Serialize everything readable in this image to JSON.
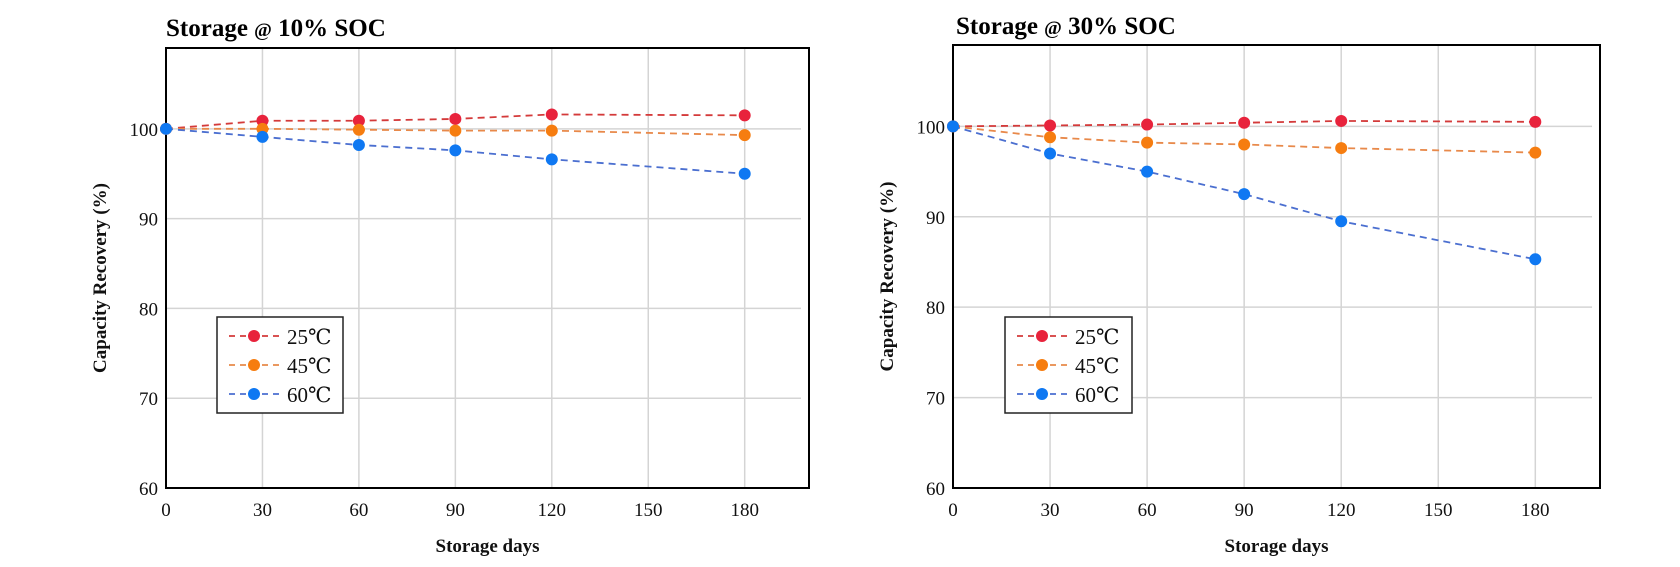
{
  "chart_data": [
    {
      "type": "line",
      "title": "Storage @ 10%  SOC",
      "title_parts": [
        "Storage ",
        "@",
        " 10%  SOC"
      ],
      "xlabel": "Storage days",
      "ylabel": "Capacity Recovery (%)",
      "x": [
        0,
        30,
        60,
        90,
        120,
        180
      ],
      "xlim": [
        0,
        200
      ],
      "ylim": [
        60,
        109
      ],
      "xticks": [
        0,
        30,
        60,
        90,
        120,
        150,
        180
      ],
      "yticks": [
        60,
        70,
        80,
        90,
        100
      ],
      "grid": true,
      "legend_position": "bottom-left",
      "series": [
        {
          "name": "25℃",
          "color": "#e8233c",
          "line_color": "#d43a3a",
          "values": [
            100.0,
            100.9,
            100.9,
            101.1,
            101.6,
            101.5
          ]
        },
        {
          "name": "45℃",
          "color": "#f67d10",
          "line_color": "#e8894a",
          "values": [
            100.0,
            100.0,
            99.9,
            99.8,
            99.8,
            99.3
          ]
        },
        {
          "name": "60℃",
          "color": "#0f78f2",
          "line_color": "#4b6fd0",
          "values": [
            100.0,
            99.1,
            98.2,
            97.6,
            96.6,
            95.0
          ]
        }
      ]
    },
    {
      "type": "line",
      "title": "Storage @ 30%  SOC",
      "title_parts": [
        "Storage ",
        "@",
        " 30%  SOC"
      ],
      "xlabel": "Storage days",
      "ylabel": "Capacity Recovery (%)",
      "x": [
        0,
        30,
        60,
        90,
        120,
        180
      ],
      "xlim": [
        0,
        200
      ],
      "ylim": [
        60,
        109
      ],
      "xticks": [
        0,
        30,
        60,
        90,
        120,
        150,
        180
      ],
      "yticks": [
        60,
        70,
        80,
        90,
        100
      ],
      "grid": true,
      "legend_position": "bottom-left",
      "series": [
        {
          "name": "25℃",
          "color": "#e8233c",
          "line_color": "#d43a3a",
          "values": [
            100.0,
            100.1,
            100.2,
            100.4,
            100.6,
            100.5
          ]
        },
        {
          "name": "45℃",
          "color": "#f67d10",
          "line_color": "#e8894a",
          "values": [
            100.0,
            98.8,
            98.2,
            98.0,
            97.6,
            97.1
          ]
        },
        {
          "name": "60℃",
          "color": "#0f78f2",
          "line_color": "#4b6fd0",
          "values": [
            100.0,
            97.0,
            95.0,
            92.5,
            89.5,
            85.3
          ]
        }
      ]
    }
  ]
}
